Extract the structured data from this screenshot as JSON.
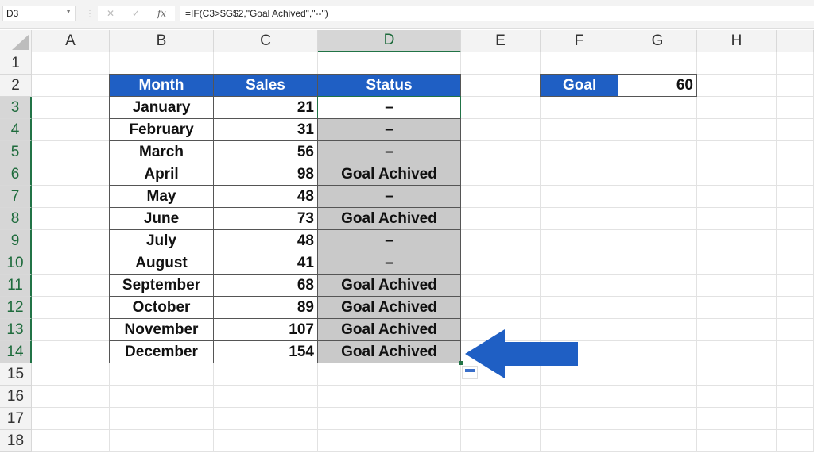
{
  "name_box": "D3",
  "formula": "=IF(C3>$G$2,\"Goal Achived\",\"--\")",
  "formula_buttons": {
    "cancel": "✕",
    "enter": "✓",
    "fx": "fx"
  },
  "columns": [
    "A",
    "B",
    "C",
    "D",
    "E",
    "F",
    "G",
    "H"
  ],
  "rows": [
    "1",
    "2",
    "3",
    "4",
    "5",
    "6",
    "7",
    "8",
    "9",
    "10",
    "11",
    "12",
    "13",
    "14",
    "15",
    "16",
    "17",
    "18"
  ],
  "table": {
    "headers": [
      "Month",
      "Sales",
      "Status"
    ],
    "rows": [
      [
        "January",
        "21",
        "–"
      ],
      [
        "February",
        "31",
        "–"
      ],
      [
        "March",
        "56",
        "–"
      ],
      [
        "April",
        "98",
        "Goal Achived"
      ],
      [
        "May",
        "48",
        "–"
      ],
      [
        "June",
        "73",
        "Goal Achived"
      ],
      [
        "July",
        "48",
        "–"
      ],
      [
        "August",
        "41",
        "–"
      ],
      [
        "September",
        "68",
        "Goal Achived"
      ],
      [
        "October",
        "89",
        "Goal Achived"
      ],
      [
        "November",
        "107",
        "Goal Achived"
      ],
      [
        "December",
        "154",
        "Goal Achived"
      ]
    ]
  },
  "goal": {
    "label": "Goal",
    "value": "60"
  },
  "colors": {
    "header_blue": "#1f5fc4",
    "selection": "#c9c9c9",
    "arrow": "#1f5fc4"
  }
}
